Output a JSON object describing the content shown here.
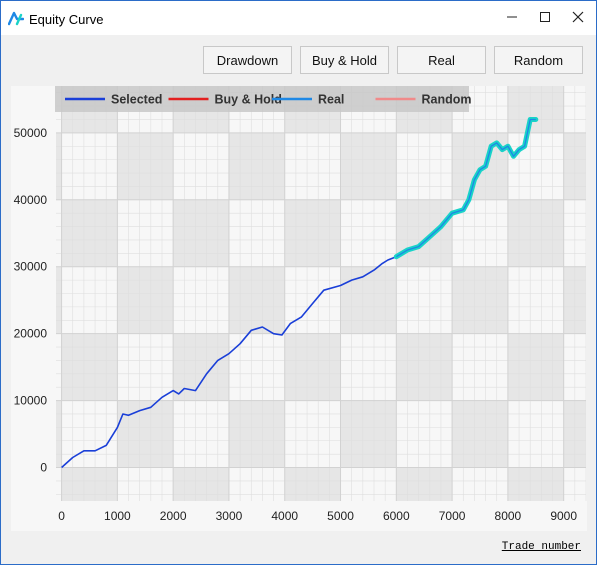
{
  "window": {
    "title": "Equity Curve",
    "controls": [
      "minimize-icon",
      "maximize-icon",
      "close-icon"
    ]
  },
  "toolbar": {
    "buttons": [
      "Drawdown",
      "Buy & Hold",
      "Real",
      "Random"
    ]
  },
  "chart_data": {
    "type": "line",
    "title": "",
    "xlabel": "Trade number",
    "ylabel": "",
    "xlim": [
      -100,
      9400
    ],
    "ylim": [
      -5000,
      57000
    ],
    "xticks": [
      0,
      1000,
      2000,
      3000,
      4000,
      5000,
      6000,
      7000,
      8000,
      9000
    ],
    "yticks": [
      0,
      10000,
      20000,
      30000,
      40000,
      50000
    ],
    "grid": true,
    "legend": {
      "placement": "top-left",
      "entries": [
        "Selected",
        "Buy & Hold",
        "Real",
        "Random"
      ]
    },
    "series": [
      {
        "name": "Selected",
        "color": "#1a3fd8",
        "x": [
          0,
          200,
          400,
          600,
          800,
          1000,
          1100,
          1200,
          1400,
          1600,
          1800,
          2000,
          2100,
          2200,
          2400,
          2600,
          2800,
          3000,
          3200,
          3400,
          3600,
          3800,
          3950,
          4100,
          4300,
          4500,
          4700,
          5000,
          5200,
          5400,
          5600,
          5750,
          5850,
          6000,
          6200,
          6400,
          6600,
          6800,
          7000,
          7200,
          7300,
          7400,
          7500,
          7600,
          7700,
          7800,
          7900,
          8000,
          8100,
          8200,
          8300,
          8400,
          8500
        ],
        "values": [
          0,
          1500,
          2500,
          2500,
          3300,
          6000,
          8000,
          7800,
          8500,
          9000,
          10500,
          11500,
          11000,
          11800,
          11500,
          14000,
          16000,
          17000,
          18500,
          20500,
          21000,
          20000,
          19800,
          21500,
          22500,
          24500,
          26500,
          27200,
          28000,
          28500,
          29500,
          30500,
          31000,
          31500,
          32500,
          33000,
          34500,
          36000,
          38000,
          38500,
          40000,
          43000,
          44500,
          45000,
          48000,
          48500,
          47500,
          48000,
          46500,
          47500,
          48000,
          52000,
          52000
        ]
      },
      {
        "name": "Buy & Hold",
        "color": "#e32020",
        "x": [],
        "values": []
      },
      {
        "name": "Real",
        "color": "#1e88e5",
        "x": [
          6000,
          6200,
          6400,
          6600,
          6800,
          7000,
          7200,
          7300,
          7400,
          7500,
          7600,
          7700,
          7800,
          7900,
          8000,
          8100,
          8200,
          8300,
          8400,
          8500
        ],
        "values": [
          31500,
          32500,
          33000,
          34500,
          36000,
          38000,
          38500,
          40000,
          43000,
          44500,
          45000,
          48000,
          48500,
          47500,
          48000,
          46500,
          47500,
          48000,
          52000,
          52000
        ]
      },
      {
        "name": "Random",
        "color": "#f08a8a",
        "x": [],
        "values": []
      }
    ],
    "highlight": {
      "color": "#19d3c8",
      "x_start": 6000,
      "x_end": 8500
    }
  }
}
